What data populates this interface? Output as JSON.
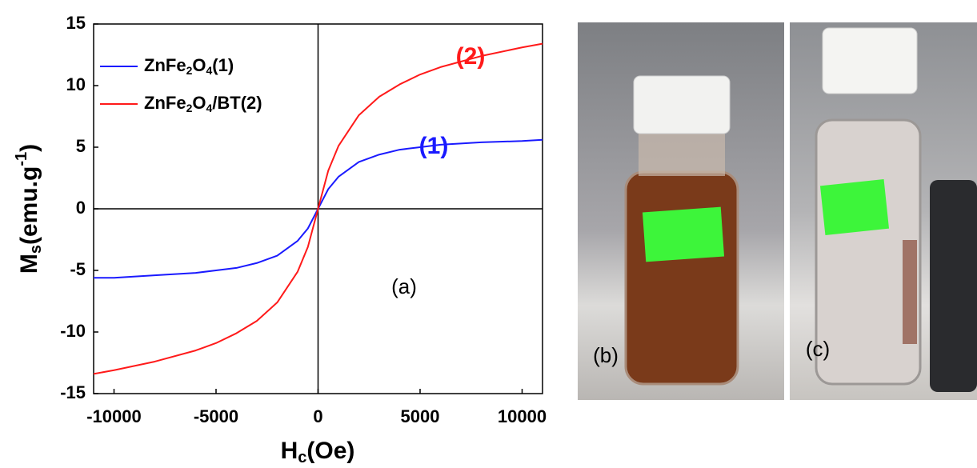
{
  "chart_data": {
    "type": "line",
    "x_label": [
      "H",
      "c",
      "(Oe)"
    ],
    "y_label": [
      "M",
      "s",
      "(emu.g",
      "-1",
      ")"
    ],
    "x": [
      -11000,
      -10000,
      -8000,
      -6000,
      -5000,
      -4000,
      -3000,
      -2000,
      -1000,
      -500,
      0,
      500,
      1000,
      2000,
      3000,
      4000,
      5000,
      6000,
      8000,
      10000,
      11000
    ],
    "series": [
      {
        "name": "ZnFe2O4(1)",
        "color": "#1a1aff",
        "values": [
          -5.6,
          -5.6,
          -5.4,
          -5.2,
          -5.0,
          -4.8,
          -4.4,
          -3.8,
          -2.6,
          -1.6,
          0,
          1.6,
          2.6,
          3.8,
          4.4,
          4.8,
          5.0,
          5.2,
          5.4,
          5.5,
          5.6
        ]
      },
      {
        "name": "ZnFe2O4/BT(2)",
        "color": "#ff1a1a",
        "values": [
          -13.4,
          -13.1,
          -12.4,
          -11.5,
          -10.9,
          -10.1,
          -9.1,
          -7.6,
          -5.1,
          -3.1,
          0,
          3.1,
          5.1,
          7.6,
          9.1,
          10.1,
          10.9,
          11.5,
          12.4,
          13.1,
          13.4
        ]
      }
    ],
    "xlim": [
      -11000,
      11000
    ],
    "ylim": [
      -15,
      15
    ],
    "xticks": [
      -10000,
      -5000,
      0,
      5000,
      10000
    ],
    "yticks": [
      -15,
      -10,
      -5,
      0,
      5,
      10,
      15
    ],
    "zero_lines": true,
    "annotations": [
      "(1)",
      "(2)",
      "(a)",
      "(b)",
      "(c)"
    ]
  }
}
